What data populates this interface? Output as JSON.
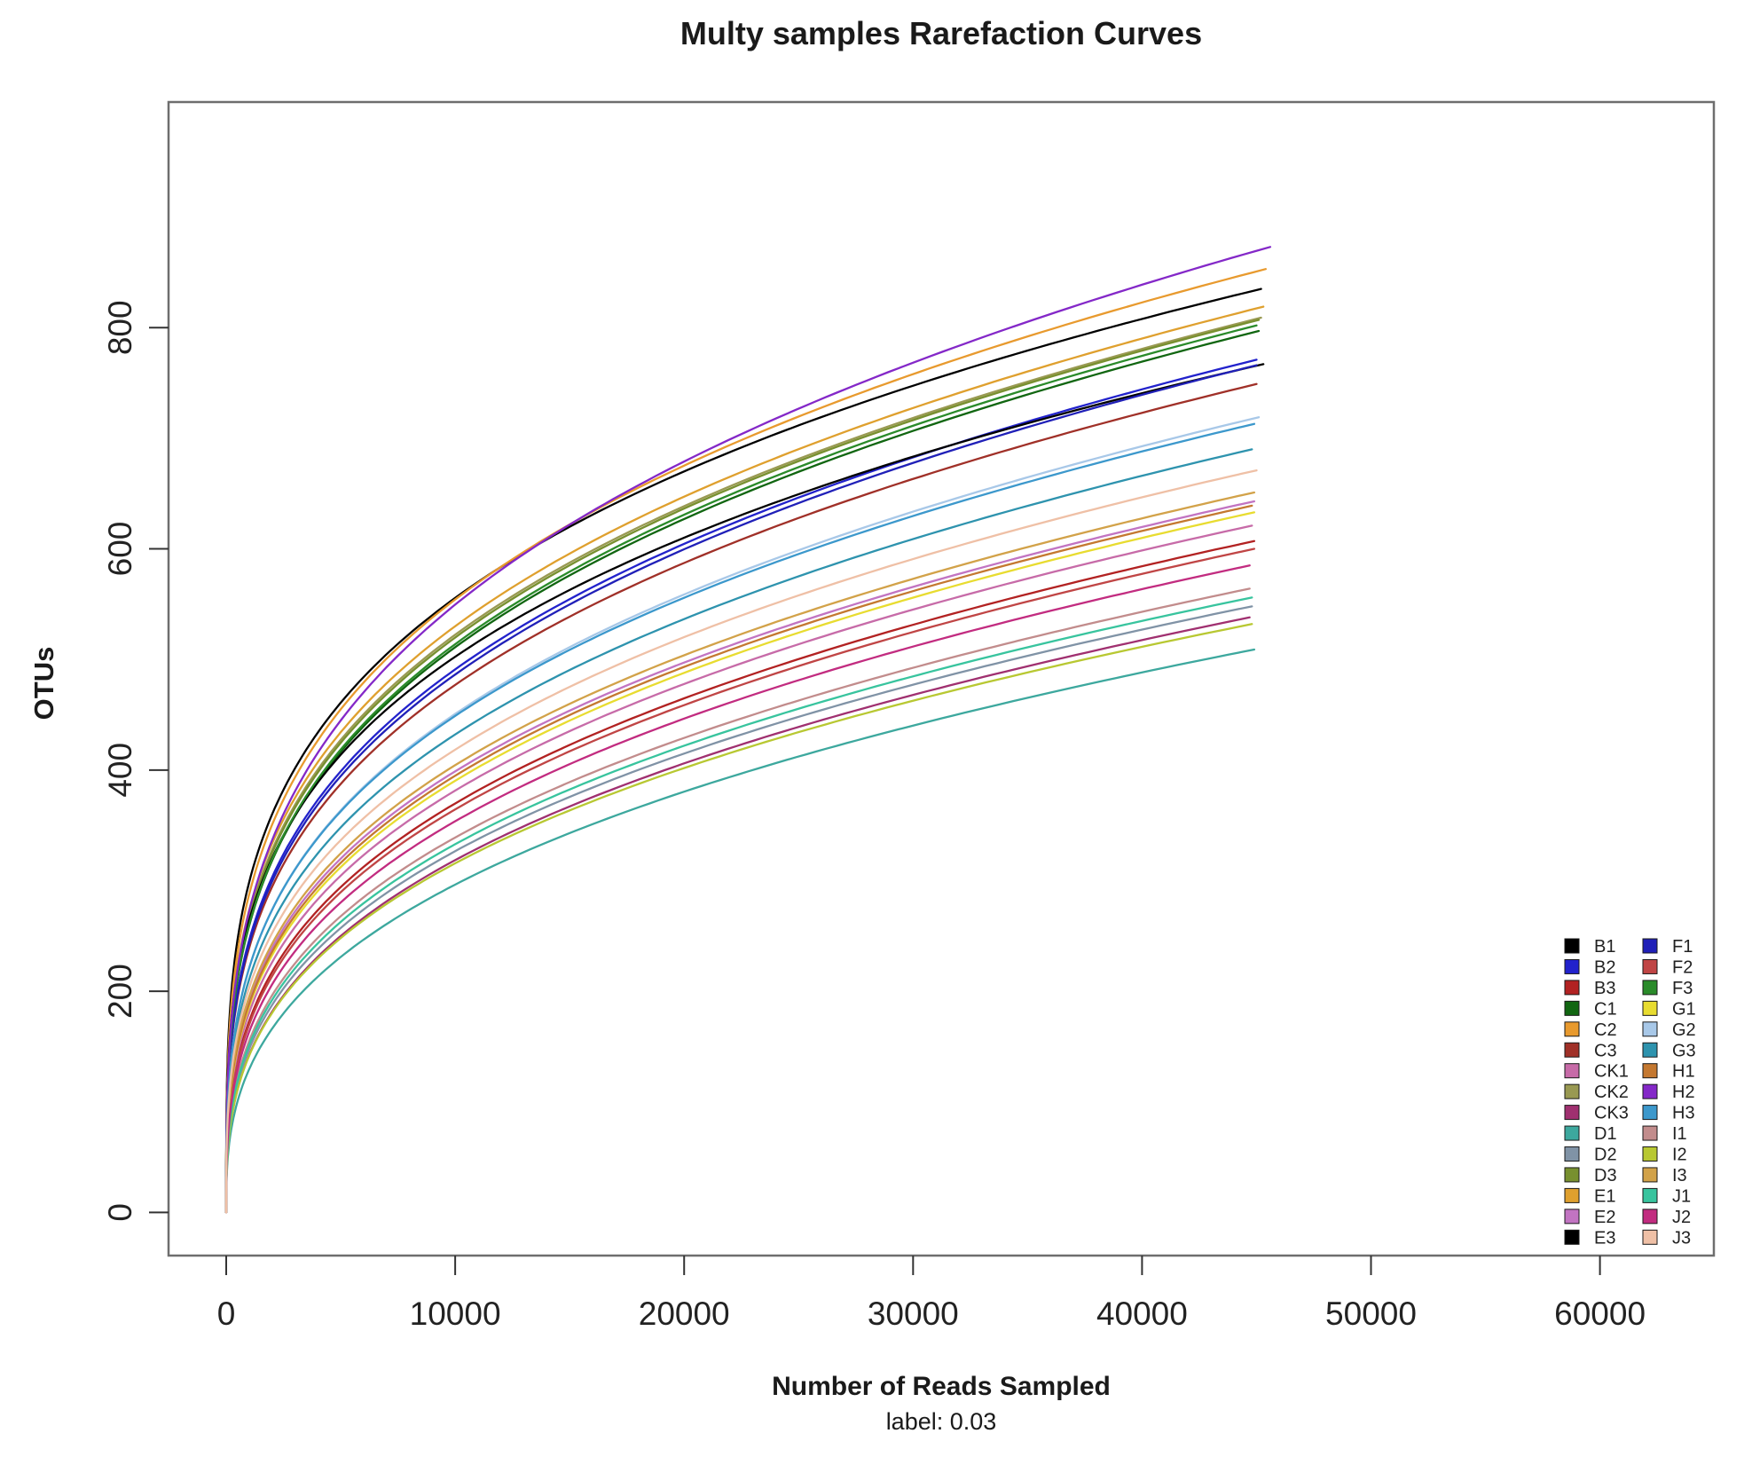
{
  "chart_data": {
    "type": "line",
    "title": "Multy samples Rarefaction Curves",
    "xlabel": "Number of Reads Sampled",
    "x_sublabel": "label: 0.03",
    "ylabel": "OTUs",
    "x_axis": {
      "ticks": [
        0,
        10000,
        20000,
        30000,
        40000,
        50000,
        60000
      ],
      "range": [
        -2519,
        64975
      ]
    },
    "y_axis": {
      "ticks": [
        0,
        200,
        400,
        600,
        800
      ],
      "range": [
        -39,
        1004
      ]
    },
    "grid": false,
    "legend": {
      "position": "bottom-right",
      "columns": 2,
      "rows_per_column": 15
    },
    "series": [
      {
        "name": "B1",
        "color": "#000000",
        "end_reads": 45200,
        "end_otus": 835,
        "shape_exponent": 0.27
      },
      {
        "name": "B2",
        "color": "#2222CC",
        "end_reads": 45000,
        "end_otus": 771,
        "shape_exponent": 0.3
      },
      {
        "name": "B3",
        "color": "#B22222",
        "end_reads": 44900,
        "end_otus": 607,
        "shape_exponent": 0.33
      },
      {
        "name": "C1",
        "color": "#116611",
        "end_reads": 45100,
        "end_otus": 797,
        "shape_exponent": 0.295
      },
      {
        "name": "C2",
        "color": "#E89A2E",
        "end_reads": 45400,
        "end_otus": 853,
        "shape_exponent": 0.285
      },
      {
        "name": "C3",
        "color": "#A03028",
        "end_reads": 45000,
        "end_otus": 749,
        "shape_exponent": 0.3
      },
      {
        "name": "CK1",
        "color": "#C76BA8",
        "end_reads": 44800,
        "end_otus": 621,
        "shape_exponent": 0.325
      },
      {
        "name": "CK2",
        "color": "#999952",
        "end_reads": 45200,
        "end_otus": 809,
        "shape_exponent": 0.29
      },
      {
        "name": "CK3",
        "color": "#A03070",
        "end_reads": 44700,
        "end_otus": 538,
        "shape_exponent": 0.35
      },
      {
        "name": "D1",
        "color": "#3DA89E",
        "end_reads": 44900,
        "end_otus": 509,
        "shape_exponent": 0.36
      },
      {
        "name": "D2",
        "color": "#8093A6",
        "end_reads": 44800,
        "end_otus": 548,
        "shape_exponent": 0.345
      },
      {
        "name": "D3",
        "color": "#78902F",
        "end_reads": 45100,
        "end_otus": 807,
        "shape_exponent": 0.292
      },
      {
        "name": "E1",
        "color": "#DFA02E",
        "end_reads": 45300,
        "end_otus": 819,
        "shape_exponent": 0.288
      },
      {
        "name": "E2",
        "color": "#C274C2",
        "end_reads": 44900,
        "end_otus": 643,
        "shape_exponent": 0.318
      },
      {
        "name": "E3",
        "color": "#000000",
        "end_reads": 45300,
        "end_otus": 767,
        "shape_exponent": 0.28
      },
      {
        "name": "F1",
        "color": "#2020B8",
        "end_reads": 45000,
        "end_otus": 766,
        "shape_exponent": 0.302
      },
      {
        "name": "F2",
        "color": "#C04545",
        "end_reads": 44900,
        "end_otus": 600,
        "shape_exponent": 0.332
      },
      {
        "name": "F3",
        "color": "#2A8B2A",
        "end_reads": 45000,
        "end_otus": 802,
        "shape_exponent": 0.296
      },
      {
        "name": "G1",
        "color": "#E8DC30",
        "end_reads": 44900,
        "end_otus": 633,
        "shape_exponent": 0.322
      },
      {
        "name": "G2",
        "color": "#A8C8E8",
        "end_reads": 45100,
        "end_otus": 719,
        "shape_exponent": 0.31
      },
      {
        "name": "G3",
        "color": "#2E93AE",
        "end_reads": 44800,
        "end_otus": 690,
        "shape_exponent": 0.312
      },
      {
        "name": "H1",
        "color": "#C47830",
        "end_reads": 44800,
        "end_otus": 639,
        "shape_exponent": 0.321
      },
      {
        "name": "H2",
        "color": "#8428C8",
        "end_reads": 45600,
        "end_otus": 873,
        "shape_exponent": 0.305
      },
      {
        "name": "H3",
        "color": "#3C98CC",
        "end_reads": 44900,
        "end_otus": 713,
        "shape_exponent": 0.308
      },
      {
        "name": "I1",
        "color": "#C28C8C",
        "end_reads": 44700,
        "end_otus": 564,
        "shape_exponent": 0.34
      },
      {
        "name": "I2",
        "color": "#B8C832",
        "end_reads": 44800,
        "end_otus": 532,
        "shape_exponent": 0.348
      },
      {
        "name": "I3",
        "color": "#D2A249",
        "end_reads": 44900,
        "end_otus": 651,
        "shape_exponent": 0.317
      },
      {
        "name": "J1",
        "color": "#38C49E",
        "end_reads": 44800,
        "end_otus": 556,
        "shape_exponent": 0.342
      },
      {
        "name": "J2",
        "color": "#C22C80",
        "end_reads": 44700,
        "end_otus": 585,
        "shape_exponent": 0.336
      },
      {
        "name": "J3",
        "color": "#EFC0A6",
        "end_reads": 45000,
        "end_otus": 671,
        "shape_exponent": 0.314
      }
    ]
  },
  "style_colors": {
    "plot_border": "#6e6e6e",
    "tick_mark": "#333333",
    "text": "#1a1a1a"
  }
}
